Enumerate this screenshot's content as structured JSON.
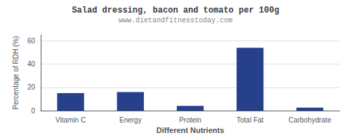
{
  "chart_data": {
    "type": "bar",
    "title": "Salad dressing, bacon and tomato per 100g",
    "subtitle": "www.dietandfitnesstoday.com",
    "xlabel": "Different Nutrients",
    "ylabel": "Percentage of RDH (%)",
    "categories": [
      "Vitamin C",
      "Energy",
      "Protein",
      "Total Fat",
      "Carbohydrate"
    ],
    "values": [
      15,
      16,
      4,
      54,
      2.5
    ],
    "color": "#27408B",
    "ylim": [
      0,
      65
    ],
    "yticks": [
      0,
      20,
      40,
      60
    ],
    "grid": true
  }
}
